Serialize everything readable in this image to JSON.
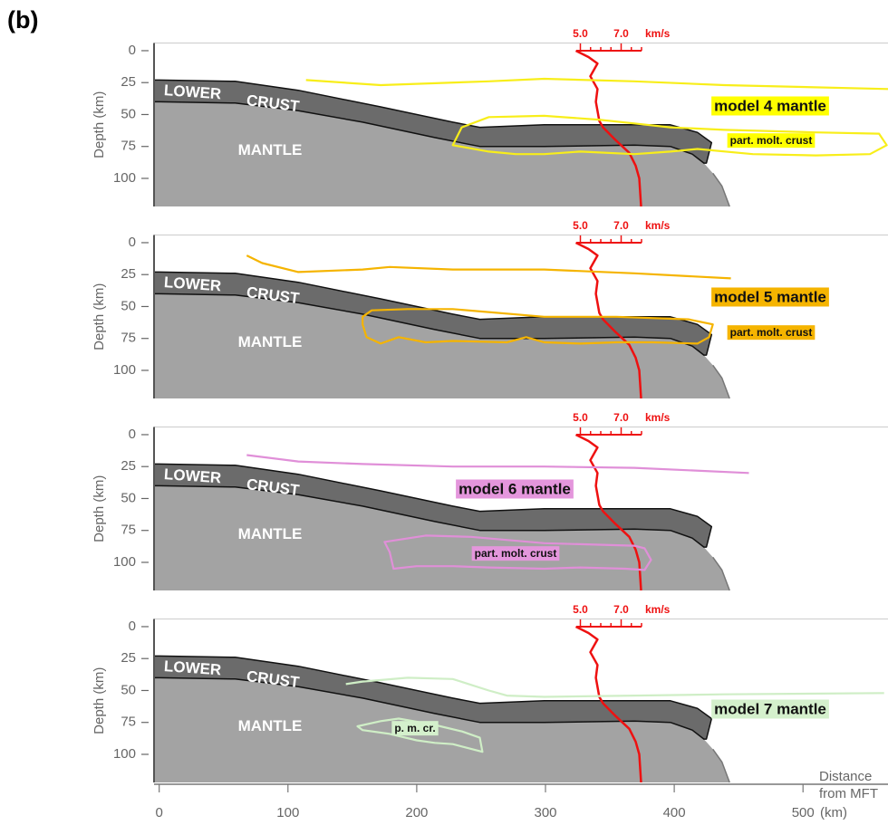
{
  "chart_data": {
    "type": "cross-section",
    "panel_label": "(b)",
    "ylabel": "Depth (km)",
    "xlabel": [
      "Distance",
      "from MFT",
      "(km)"
    ],
    "xlim": [
      -4,
      566
    ],
    "xticks": [
      0,
      100,
      200,
      300,
      400,
      500
    ],
    "ylim": [
      -6,
      122
    ],
    "yticks": [
      0,
      25,
      50,
      75,
      100
    ],
    "y_inverted": true,
    "layers": {
      "lower_crust_label": [
        "LOWER",
        "CRUST"
      ],
      "mantle_label": "MANTLE",
      "lower_crust_color": "#6b6b6b",
      "mantle_color": "#a3a3a3",
      "top": {
        "x": [
          0,
          59,
          108,
          172,
          228,
          249,
          299,
          369,
          397,
          418,
          429,
          425
        ],
        "y": [
          23,
          24,
          31,
          44,
          56,
          60,
          58,
          58,
          58,
          64,
          72,
          88
        ]
      },
      "moho": {
        "x": [
          0,
          59,
          108,
          158,
          214,
          249,
          299,
          369,
          397,
          414,
          423
        ],
        "y": [
          40,
          41,
          47,
          56,
          68,
          75,
          75,
          74,
          75,
          81,
          88
        ]
      },
      "mantle_edge": {
        "x": [
          430,
          437,
          443
        ],
        "y": [
          96,
          106,
          122
        ]
      }
    },
    "velocity": {
      "color": "#ee1111",
      "unit": "km/s",
      "vlim": [
        4.8,
        8.0
      ],
      "ticks": [
        {
          "value": 5.0,
          "label": "5.0"
        },
        {
          "value": 7.0,
          "label": "7.0"
        }
      ],
      "minor_ticks": [
        5.5,
        6.0,
        6.5,
        7.5,
        8.0
      ],
      "depth": [
        0,
        5,
        10,
        20,
        30,
        40,
        55,
        60,
        70,
        80,
        90,
        100,
        122
      ],
      "values": [
        4.78,
        5.4,
        5.84,
        5.49,
        5.84,
        5.76,
        5.93,
        6.11,
        6.73,
        7.4,
        7.71,
        7.89,
        7.98
      ]
    },
    "panels": [
      {
        "series": [
          {
            "name": "model 4 mantle",
            "color": "#f8ee1a",
            "label_color": "#ffff00",
            "x": [
              114,
              172,
              256,
              299,
              369,
              439,
              566
            ],
            "y": [
              23,
              27,
              24,
              22,
              24,
              27,
              30
            ]
          },
          {
            "name": "part. molt. crust",
            "color": "#f8ee1a",
            "label_color": "#ffff00",
            "closed": true,
            "x": [
              228,
              235,
              256,
              299,
              341,
              369,
              397,
              439,
              510,
              559,
              565,
              552,
              510,
              461,
              418,
              397,
              369,
              327,
              299,
              277,
              256
            ],
            "y": [
              74,
              60,
              52,
              51,
              54,
              57,
              60,
              62,
              64,
              65,
              74,
              81,
              82,
              81,
              77,
              79,
              81,
              79,
              81,
              81,
              79
            ]
          }
        ]
      },
      {
        "series": [
          {
            "name": "model 5 mantle",
            "color": "#f5b400",
            "label_color": "#f5b400",
            "x": [
              68,
              80,
              108,
              158,
              179,
              228,
              299,
              369,
              444
            ],
            "y": [
              10,
              16,
              23,
              21,
              19,
              21,
              21,
              24,
              28
            ]
          },
          {
            "name": "part. molt. crust",
            "color": "#f5b400",
            "label_color": "#f5b400",
            "closed": true,
            "x": [
              158,
              165,
              193,
              228,
              299,
              355,
              411,
              430,
              427,
              418,
              383,
              355,
              327,
              299,
              285,
              270,
              228,
              207,
              186,
              172,
              161,
              158
            ],
            "y": [
              58,
              53,
              52,
              52,
              58,
              58,
              60,
              64,
              74,
              79,
              78,
              78,
              79,
              78,
              74,
              78,
              77,
              78,
              74,
              79,
              74,
              64
            ]
          }
        ]
      },
      {
        "series": [
          {
            "name": "model 6 mantle",
            "color": "#e08fd8",
            "label_color": "#e496dc",
            "x": [
              68,
              108,
              158,
              228,
              299,
              369,
              458
            ],
            "y": [
              16,
              21,
              23,
              25,
              25,
              26,
              30
            ]
          },
          {
            "name": "part. molt. crust",
            "color": "#e08fd8",
            "label_color": "#e496dc",
            "closed": true,
            "x": [
              175,
              207,
              242,
              299,
              369,
              377,
              382,
              377,
              362,
              327,
              299,
              256,
              228,
              200,
              182,
              179
            ],
            "y": [
              84,
              79,
              80,
              85,
              87,
              89,
              98,
              106,
              105,
              104,
              105,
              104,
              103,
              103,
              105,
              92
            ]
          }
        ]
      },
      {
        "series": [
          {
            "name": "model 7 mantle",
            "color": "#cfeec6",
            "label_color": "#d4f0cc",
            "x": [
              145,
              158,
              193,
              228,
              256,
              270,
              299,
              369,
              439,
              563
            ],
            "y": [
              45,
              43,
              40,
              41,
              50,
              54,
              55,
              54,
              53,
              52
            ]
          },
          {
            "name": "p. m. cr.",
            "color": "#cfeec6",
            "label_color": "#d4f0cc",
            "closed": true,
            "x": [
              154,
              172,
              186,
              214,
              235,
              249,
              251,
              228,
              214,
              200,
              179,
              158
            ],
            "y": [
              78,
              74,
              72,
              77,
              82,
              87,
              98,
              92,
              91,
              89,
              84,
              81
            ]
          }
        ]
      }
    ]
  }
}
